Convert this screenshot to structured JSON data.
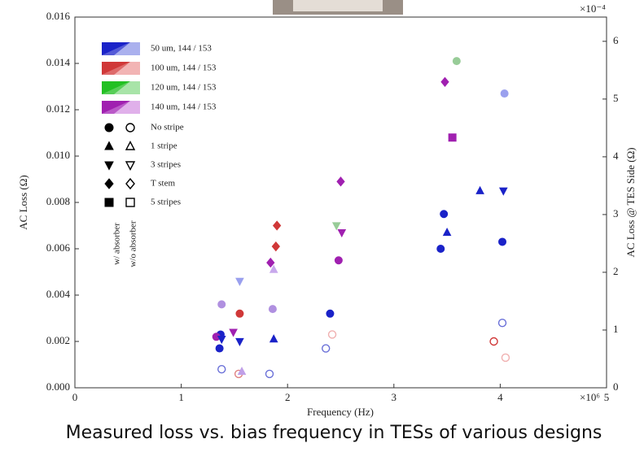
{
  "chart_data": {
    "type": "scatter",
    "caption": "Measured loss vs. bias frequency in TESs of various designs",
    "x_label": "Frequency (Hz)",
    "y_label": "AC Loss (Ω)",
    "y2_label": "AC Loss @ TES Side (Ω)",
    "x_multiplier": "×10⁶",
    "y2_multiplier": "×10⁻⁴",
    "xlim": [
      0,
      5
    ],
    "xticks": [
      0,
      1,
      2,
      3,
      4,
      5
    ],
    "ylim": [
      0,
      0.016
    ],
    "yticks": [
      {
        "value": 0,
        "label": "0.000"
      },
      {
        "value": 0.002,
        "label": "0.002"
      },
      {
        "value": 0.004,
        "label": "0.004"
      },
      {
        "value": 0.006,
        "label": "0.006"
      },
      {
        "value": 0.008,
        "label": "0.008"
      },
      {
        "value": 0.01,
        "label": "0.010"
      },
      {
        "value": 0.012,
        "label": "0.012"
      },
      {
        "value": 0.014,
        "label": "0.014"
      },
      {
        "value": 0.016,
        "label": "0.016"
      }
    ],
    "y2lim": [
      0,
      6.42
    ],
    "y2ticks": [
      0,
      1,
      2,
      3,
      4,
      5,
      6
    ],
    "legend_sizes": [
      {
        "name": "50 um, 144 / 153",
        "color": "#1a22c8",
        "light_color": "#aab0ee"
      },
      {
        "name": "100 um, 144 / 153",
        "color": "#d03838",
        "light_color": "#f2b4b4"
      },
      {
        "name": "120 um, 144 / 153",
        "color": "#22c022",
        "light_color": "#a8e4a8"
      },
      {
        "name": "140 um, 144 / 153",
        "color": "#a020b0",
        "light_color": "#e0b0ea"
      }
    ],
    "legend_markers": [
      {
        "name": "No stripe",
        "shape": "circle"
      },
      {
        "name": "1 stripe",
        "shape": "triangle"
      },
      {
        "name": "3 stripes",
        "shape": "down-triangle"
      },
      {
        "name": "T stem",
        "shape": "diamond"
      },
      {
        "name": "5 stripes",
        "shape": "square"
      }
    ],
    "filled_label": "w/ absorber",
    "open_label": "w/o absorber",
    "points": [
      {
        "x": 1.36,
        "y": 0.0017,
        "color": "#1a22c8",
        "shape": "circle",
        "filled": true
      },
      {
        "x": 1.37,
        "y": 0.0023,
        "color": "#1a22c8",
        "shape": "circle",
        "filled": true
      },
      {
        "x": 1.33,
        "y": 0.0022,
        "color": "#a020b0",
        "shape": "circle",
        "filled": true
      },
      {
        "x": 1.38,
        "y": 0.0021,
        "color": "#1a22c8",
        "shape": "down-triangle",
        "filled": true
      },
      {
        "x": 1.38,
        "y": 0.0008,
        "color": "#6a70d8",
        "shape": "circle",
        "filled": false
      },
      {
        "x": 1.38,
        "y": 0.0036,
        "color": "#b090e0",
        "shape": "circle",
        "filled": true
      },
      {
        "x": 1.49,
        "y": 0.0024,
        "color": "#a020b0",
        "shape": "down-triangle",
        "filled": true
      },
      {
        "x": 1.55,
        "y": 0.002,
        "color": "#1a22c8",
        "shape": "down-triangle",
        "filled": true
      },
      {
        "x": 1.55,
        "y": 0.0032,
        "color": "#d03838",
        "shape": "circle",
        "filled": true
      },
      {
        "x": 1.55,
        "y": 0.0046,
        "color": "#9aa0ee",
        "shape": "down-triangle",
        "filled": true
      },
      {
        "x": 1.54,
        "y": 0.0006,
        "color": "#e08080",
        "shape": "circle",
        "filled": false
      },
      {
        "x": 1.57,
        "y": 0.0007,
        "color": "#c0a0e8",
        "shape": "triangle",
        "filled": true
      },
      {
        "x": 1.84,
        "y": 0.0054,
        "color": "#a020b0",
        "shape": "diamond",
        "filled": true
      },
      {
        "x": 1.87,
        "y": 0.0051,
        "color": "#c8a8ec",
        "shape": "triangle",
        "filled": true
      },
      {
        "x": 1.9,
        "y": 0.007,
        "color": "#d03838",
        "shape": "diamond",
        "filled": true
      },
      {
        "x": 1.89,
        "y": 0.0061,
        "color": "#d03838",
        "shape": "diamond",
        "filled": true
      },
      {
        "x": 1.87,
        "y": 0.0021,
        "color": "#1a22c8",
        "shape": "triangle",
        "filled": true
      },
      {
        "x": 1.86,
        "y": 0.0034,
        "color": "#b090e0",
        "shape": "circle",
        "filled": true
      },
      {
        "x": 1.83,
        "y": 0.0006,
        "color": "#6a70d8",
        "shape": "circle",
        "filled": false
      },
      {
        "x": 2.4,
        "y": 0.0032,
        "color": "#1a22c8",
        "shape": "circle",
        "filled": true
      },
      {
        "x": 2.42,
        "y": 0.0023,
        "color": "#f0b0b0",
        "shape": "circle",
        "filled": false
      },
      {
        "x": 2.36,
        "y": 0.0017,
        "color": "#6a70d8",
        "shape": "circle",
        "filled": false
      },
      {
        "x": 2.5,
        "y": 0.0089,
        "color": "#a020b0",
        "shape": "diamond",
        "filled": true
      },
      {
        "x": 2.46,
        "y": 0.007,
        "color": "#98cc98",
        "shape": "down-triangle",
        "filled": true
      },
      {
        "x": 2.51,
        "y": 0.0067,
        "color": "#a020b0",
        "shape": "down-triangle",
        "filled": true
      },
      {
        "x": 2.48,
        "y": 0.0055,
        "color": "#a020b0",
        "shape": "circle",
        "filled": true
      },
      {
        "x": 3.44,
        "y": 0.006,
        "color": "#1a22c8",
        "shape": "circle",
        "filled": true
      },
      {
        "x": 3.47,
        "y": 0.0075,
        "color": "#1a22c8",
        "shape": "circle",
        "filled": true
      },
      {
        "x": 3.5,
        "y": 0.0067,
        "color": "#1a22c8",
        "shape": "triangle",
        "filled": true
      },
      {
        "x": 3.48,
        "y": 0.0132,
        "color": "#a020b0",
        "shape": "diamond",
        "filled": true
      },
      {
        "x": 3.59,
        "y": 0.0141,
        "color": "#98cc98",
        "shape": "circle",
        "filled": true
      },
      {
        "x": 3.55,
        "y": 0.0108,
        "color": "#a020b0",
        "shape": "square",
        "filled": true
      },
      {
        "x": 3.81,
        "y": 0.0085,
        "color": "#1a22c8",
        "shape": "triangle",
        "filled": true
      },
      {
        "x": 4.03,
        "y": 0.0085,
        "color": "#1a22c8",
        "shape": "down-triangle",
        "filled": true
      },
      {
        "x": 4.02,
        "y": 0.0063,
        "color": "#1a22c8",
        "shape": "circle",
        "filled": true
      },
      {
        "x": 4.04,
        "y": 0.0127,
        "color": "#9aa0ee",
        "shape": "circle",
        "filled": true
      },
      {
        "x": 3.94,
        "y": 0.002,
        "color": "#d03838",
        "shape": "circle",
        "filled": false
      },
      {
        "x": 4.02,
        "y": 0.0028,
        "color": "#6a70d8",
        "shape": "circle",
        "filled": false
      },
      {
        "x": 4.05,
        "y": 0.0013,
        "color": "#f0b0b0",
        "shape": "circle",
        "filled": false
      }
    ]
  }
}
